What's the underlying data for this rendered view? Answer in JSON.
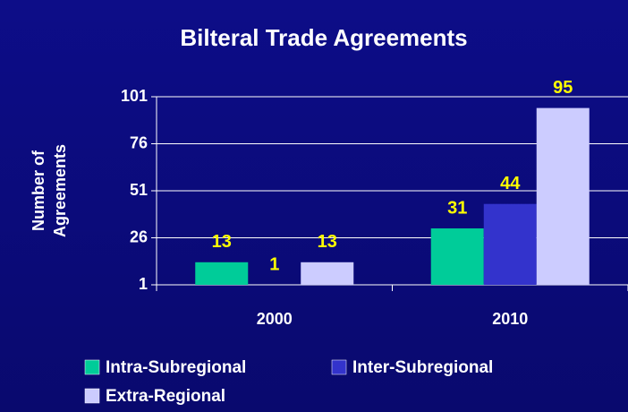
{
  "chart_data": {
    "type": "bar",
    "title": "Bilteral Trade Agreements",
    "y_label": [
      "Number of",
      "Agreements"
    ],
    "categories": [
      "2000",
      "2010"
    ],
    "series": [
      {
        "name": "Intra-Subregional",
        "color": "#00cc99",
        "values": [
          13,
          31
        ]
      },
      {
        "name": "Inter-Subregional",
        "color": "#3333cc",
        "values": [
          1,
          44
        ]
      },
      {
        "name": "Extra-Regional",
        "color": "#ccccff",
        "values": [
          13,
          95
        ]
      }
    ],
    "ylim": [
      1,
      101
    ],
    "yticks": [
      1,
      26,
      51,
      76,
      101
    ],
    "grid": true,
    "value_label_color": "#ffff00"
  }
}
